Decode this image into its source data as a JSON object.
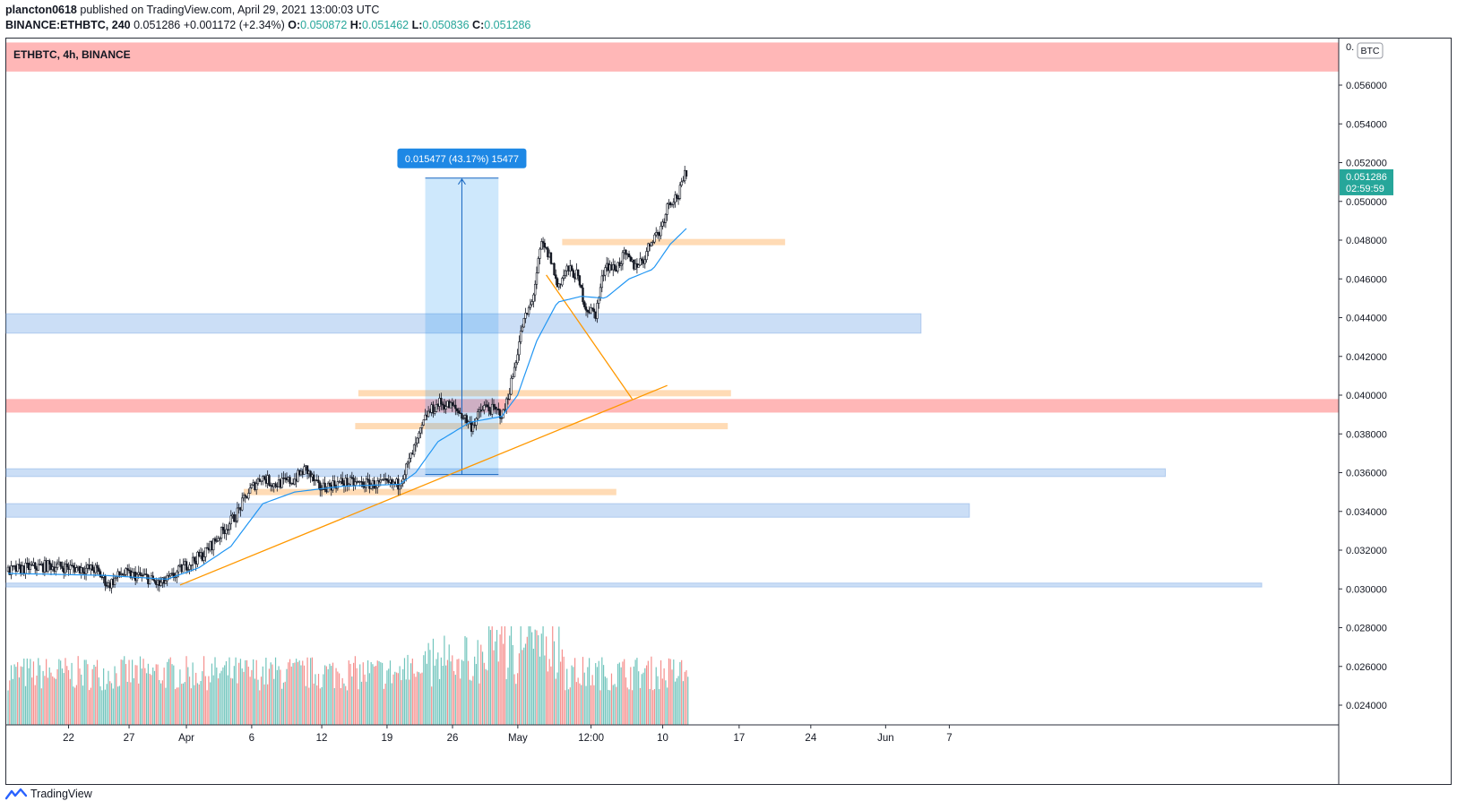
{
  "header": {
    "author": "plancton0618",
    "published_text": "published on TradingView.com, April 29, 2021 13:00:03 UTC",
    "symbol": "BINANCE:ETHBTC, 240",
    "price": "0.051286",
    "change": "+0.001172 (+2.34%)",
    "open_label": "O:",
    "open": "0.050872",
    "high_label": "H:",
    "high": "0.051462",
    "low_label": "L:",
    "low": "0.050836",
    "close_label": "C:",
    "close": "0.051286"
  },
  "pane": {
    "title": "ETHBTC, 4h, BINANCE",
    "currency_badge": "BTC"
  },
  "price_label": {
    "value": "0.051286",
    "countdown": "02:59:59"
  },
  "measure_label": "0.015477 (43.17%) 15477",
  "footer": {
    "brand": "TradingView"
  },
  "colors": {
    "up": "#26a69a",
    "down": "#ef5350",
    "ma": "#2196f3",
    "trendline": "#ff9800",
    "resistance_zone": "#ffb3b3",
    "support_zone": "#a9c8f0",
    "level_zone": "#ffd5a8"
  },
  "chart_data": {
    "type": "candlestick",
    "symbol": "ETHBTC",
    "timeframe": "4h",
    "exchange": "BINANCE",
    "y_range": [
      0.0232,
      0.0576
    ],
    "y_ticks": [
      "0.056000",
      "0.054000",
      "0.052000",
      "0.050000",
      "0.048000",
      "0.046000",
      "0.044000",
      "0.042000",
      "0.040000",
      "0.038000",
      "0.036000",
      "0.034000",
      "0.032000",
      "0.030000",
      "0.028000",
      "0.026000",
      "0.024000"
    ],
    "x_ticks": [
      "22",
      "27",
      "Apr",
      "6",
      "12",
      "19",
      "26",
      "May",
      "12:00",
      "10",
      "17",
      "24",
      "Jun",
      "7"
    ],
    "price_path": [
      [
        0,
        0.0309
      ],
      [
        14,
        0.0311
      ],
      [
        28,
        0.0312
      ],
      [
        40,
        0.0311
      ],
      [
        56,
        0.031
      ],
      [
        64,
        0.0302
      ],
      [
        72,
        0.0308
      ],
      [
        88,
        0.0306
      ],
      [
        96,
        0.0302
      ],
      [
        104,
        0.0306
      ],
      [
        112,
        0.0312
      ],
      [
        124,
        0.0318
      ],
      [
        136,
        0.033
      ],
      [
        144,
        0.0338
      ],
      [
        152,
        0.035
      ],
      [
        160,
        0.0358
      ],
      [
        168,
        0.0354
      ],
      [
        180,
        0.0356
      ],
      [
        188,
        0.0362
      ],
      [
        196,
        0.0352
      ],
      [
        210,
        0.0355
      ],
      [
        230,
        0.0354
      ],
      [
        246,
        0.0354
      ],
      [
        252,
        0.0364
      ],
      [
        258,
        0.0376
      ],
      [
        264,
        0.039
      ],
      [
        272,
        0.0396
      ],
      [
        280,
        0.0394
      ],
      [
        286,
        0.039
      ],
      [
        292,
        0.0384
      ],
      [
        300,
        0.0394
      ],
      [
        312,
        0.039
      ],
      [
        318,
        0.041
      ],
      [
        324,
        0.0436
      ],
      [
        330,
        0.0448
      ],
      [
        336,
        0.0478
      ],
      [
        342,
        0.047
      ],
      [
        346,
        0.0456
      ],
      [
        352,
        0.0465
      ],
      [
        358,
        0.0462
      ],
      [
        364,
        0.0445
      ],
      [
        370,
        0.0442
      ],
      [
        376,
        0.0468
      ],
      [
        382,
        0.0465
      ],
      [
        388,
        0.0472
      ],
      [
        394,
        0.0467
      ],
      [
        400,
        0.047
      ],
      [
        406,
        0.0482
      ],
      [
        410,
        0.0484
      ],
      [
        416,
        0.05
      ],
      [
        422,
        0.0503
      ],
      [
        426,
        0.0513
      ]
    ],
    "ma_path": [
      [
        0,
        0.0308
      ],
      [
        60,
        0.0307
      ],
      [
        100,
        0.0305
      ],
      [
        120,
        0.0311
      ],
      [
        140,
        0.0322
      ],
      [
        160,
        0.0344
      ],
      [
        180,
        0.035
      ],
      [
        210,
        0.0353
      ],
      [
        246,
        0.0354
      ],
      [
        256,
        0.036
      ],
      [
        270,
        0.0376
      ],
      [
        290,
        0.0386
      ],
      [
        310,
        0.0389
      ],
      [
        320,
        0.04
      ],
      [
        332,
        0.0428
      ],
      [
        345,
        0.0448
      ],
      [
        360,
        0.0451
      ],
      [
        375,
        0.045
      ],
      [
        390,
        0.046
      ],
      [
        405,
        0.0465
      ],
      [
        416,
        0.0478
      ],
      [
        426,
        0.0486
      ]
    ],
    "candle_count": 428,
    "volume_range": [
      0,
      1
    ],
    "zones": [
      {
        "kind": "resistance",
        "from": 0.0567,
        "to": 0.0582,
        "x_end": 1.0
      },
      {
        "kind": "resistance",
        "from": 0.0391,
        "to": 0.0398,
        "x_end": 1.0
      },
      {
        "kind": "support",
        "from": 0.0432,
        "to": 0.0442,
        "x_end": 0.6865
      },
      {
        "kind": "support",
        "from": 0.0358,
        "to": 0.0362,
        "x_end": 0.8699
      },
      {
        "kind": "support",
        "from": 0.0337,
        "to": 0.0344,
        "x_end": 0.7228
      },
      {
        "kind": "support",
        "from": 0.0301,
        "to": 0.0303,
        "x_end": 0.9422
      }
    ],
    "levels": [
      {
        "from_i": 348,
        "to_i": 488,
        "value": 0.0479
      },
      {
        "from_i": 220,
        "to_i": 454,
        "value": 0.0401
      },
      {
        "from_i": 218,
        "to_i": 452,
        "value": 0.0384
      },
      {
        "from_i": 148,
        "to_i": 382,
        "value": 0.035
      }
    ],
    "trendlines": [
      {
        "from": [
          108,
          0.0302
        ],
        "to": [
          414,
          0.0405
        ]
      },
      {
        "from": [
          338,
          0.0462
        ],
        "to": [
          392,
          0.0398
        ]
      }
    ],
    "measure": {
      "from_i": 262,
      "to_i": 308,
      "low": 0.0359,
      "high": 0.0512
    }
  }
}
